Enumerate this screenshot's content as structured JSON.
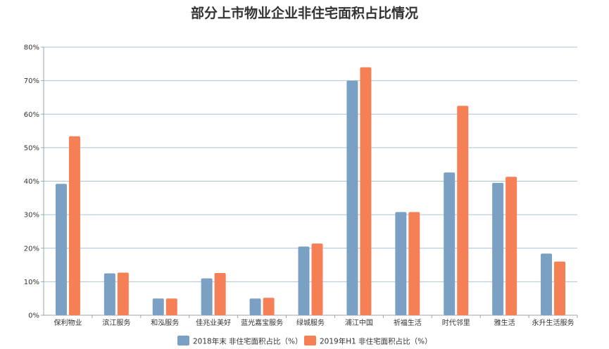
{
  "title": "部分上市物业企业非住宅面积占比情况",
  "chart_data": {
    "type": "bar",
    "title": "部分上市物业企业非住宅面积占比情况",
    "categories": [
      "保利物业",
      "滨江服务",
      "和泓服务",
      "佳兆业美好",
      "蓝光嘉宝服务",
      "绿城服务",
      "浦江中国",
      "祈福生活",
      "时代邻里",
      "雅生活",
      "永升生活服务"
    ],
    "series": [
      {
        "name": "2018年末 非住宅面积占比（%）",
        "color": "#7aa0c4",
        "values": [
          39.2,
          12.5,
          5.0,
          11.0,
          5.0,
          20.5,
          70.0,
          30.8,
          42.6,
          39.5,
          18.4
        ]
      },
      {
        "name": "2019年H1 非住宅面积占比（%）",
        "color": "#f58055",
        "values": [
          53.4,
          12.7,
          5.0,
          12.6,
          5.2,
          21.4,
          74.0,
          30.8,
          62.5,
          41.3,
          16.0
        ]
      }
    ],
    "y_ticks": [
      "0%",
      "10%",
      "20%",
      "30%",
      "40%",
      "50%",
      "60%",
      "70%",
      "80%"
    ],
    "ylim": [
      0,
      80
    ],
    "xlabel": "",
    "ylabel": "",
    "grid": true,
    "legend_position": "bottom"
  }
}
